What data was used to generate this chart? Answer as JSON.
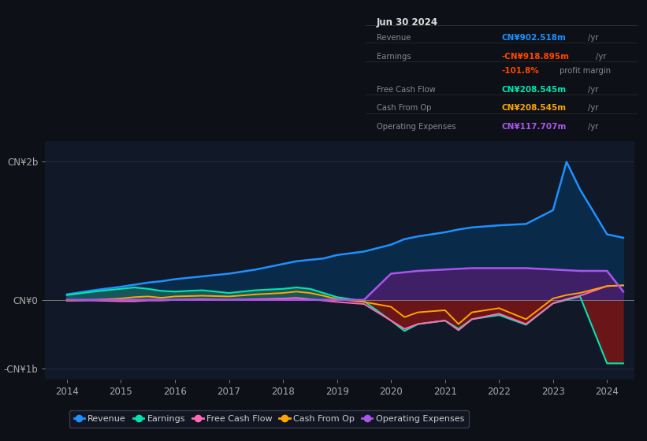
{
  "bg_color": "#0d1117",
  "plot_bg": "#111827",
  "years": [
    2014,
    2014.5,
    2015,
    2015.25,
    2015.5,
    2015.75,
    2016,
    2016.5,
    2017,
    2017.5,
    2018,
    2018.25,
    2018.5,
    2018.75,
    2019,
    2019.5,
    2020,
    2020.25,
    2020.5,
    2021,
    2021.25,
    2021.5,
    2022,
    2022.5,
    2023,
    2023.25,
    2023.5,
    2024,
    2024.3
  ],
  "revenue": [
    0.08,
    0.14,
    0.19,
    0.22,
    0.25,
    0.27,
    0.3,
    0.34,
    0.38,
    0.44,
    0.52,
    0.56,
    0.58,
    0.6,
    0.65,
    0.7,
    0.8,
    0.88,
    0.92,
    0.98,
    1.02,
    1.05,
    1.08,
    1.1,
    1.3,
    2.0,
    1.6,
    0.95,
    0.9
  ],
  "earnings": [
    0.07,
    0.12,
    0.16,
    0.18,
    0.16,
    0.13,
    0.12,
    0.14,
    0.1,
    0.14,
    0.16,
    0.18,
    0.16,
    0.1,
    0.04,
    -0.02,
    -0.3,
    -0.45,
    -0.35,
    -0.3,
    -0.42,
    -0.28,
    -0.22,
    -0.36,
    -0.05,
    0.0,
    0.05,
    -0.92,
    -0.92
  ],
  "free_cash_flow": [
    -0.01,
    -0.01,
    -0.02,
    -0.02,
    -0.01,
    -0.01,
    0.0,
    0.01,
    0.0,
    0.01,
    0.02,
    0.03,
    0.01,
    -0.01,
    -0.03,
    -0.06,
    -0.3,
    -0.42,
    -0.35,
    -0.3,
    -0.44,
    -0.28,
    -0.2,
    -0.35,
    -0.05,
    0.01,
    0.06,
    0.2,
    0.21
  ],
  "cash_from_op": [
    -0.01,
    0.0,
    0.02,
    0.04,
    0.05,
    0.03,
    0.05,
    0.06,
    0.05,
    0.08,
    0.1,
    0.12,
    0.1,
    0.06,
    0.01,
    -0.03,
    -0.1,
    -0.25,
    -0.18,
    -0.15,
    -0.35,
    -0.18,
    -0.12,
    -0.28,
    0.02,
    0.07,
    0.1,
    0.2,
    0.21
  ],
  "op_expenses": [
    0.0,
    0.0,
    0.0,
    0.0,
    0.0,
    0.0,
    0.0,
    0.0,
    0.0,
    0.0,
    0.0,
    0.0,
    0.0,
    0.0,
    0.0,
    0.0,
    0.38,
    0.4,
    0.42,
    0.44,
    0.45,
    0.46,
    0.46,
    0.46,
    0.44,
    0.43,
    0.42,
    0.42,
    0.12
  ],
  "revenue_color": "#1e90ff",
  "earnings_color": "#00e5b0",
  "earnings_fill_pos": "#1a6060",
  "earnings_fill_neg": "#7a1515",
  "free_cash_flow_color": "#ff69b4",
  "cash_from_op_color": "#ffa500",
  "op_expenses_color": "#aa55ee",
  "op_expenses_fill": "#44206a",
  "revenue_fill": "#0a2a4a",
  "ylim": [
    -1.15,
    2.3
  ],
  "grid_color": "#2a2a3a",
  "zero_line_color": "#888888",
  "tick_color": "#aaaaaa",
  "info_box": {
    "date": "Jun 30 2024",
    "rows": [
      {
        "label": "Revenue",
        "val": "CN¥902.518m",
        "suffix": "/yr",
        "val_color": "#1e90ff"
      },
      {
        "label": "Earnings",
        "val": "-CN¥918.895m",
        "suffix": "/yr",
        "val_color": "#ff4500"
      },
      {
        "label": "",
        "val": "-101.8%",
        "suffix": " profit margin",
        "val_color": "#ff4500"
      },
      {
        "label": "Free Cash Flow",
        "val": "CN¥208.545m",
        "suffix": "/yr",
        "val_color": "#00e5b0"
      },
      {
        "label": "Cash From Op",
        "val": "CN¥208.545m",
        "suffix": "/yr",
        "val_color": "#ffa500"
      },
      {
        "label": "Operating Expenses",
        "val": "CN¥117.707m",
        "suffix": "/yr",
        "val_color": "#aa55ee"
      }
    ]
  },
  "legend": [
    {
      "label": "Revenue",
      "color": "#1e90ff"
    },
    {
      "label": "Earnings",
      "color": "#00e5b0"
    },
    {
      "label": "Free Cash Flow",
      "color": "#ff69b4"
    },
    {
      "label": "Cash From Op",
      "color": "#ffa500"
    },
    {
      "label": "Operating Expenses",
      "color": "#aa55ee"
    }
  ]
}
